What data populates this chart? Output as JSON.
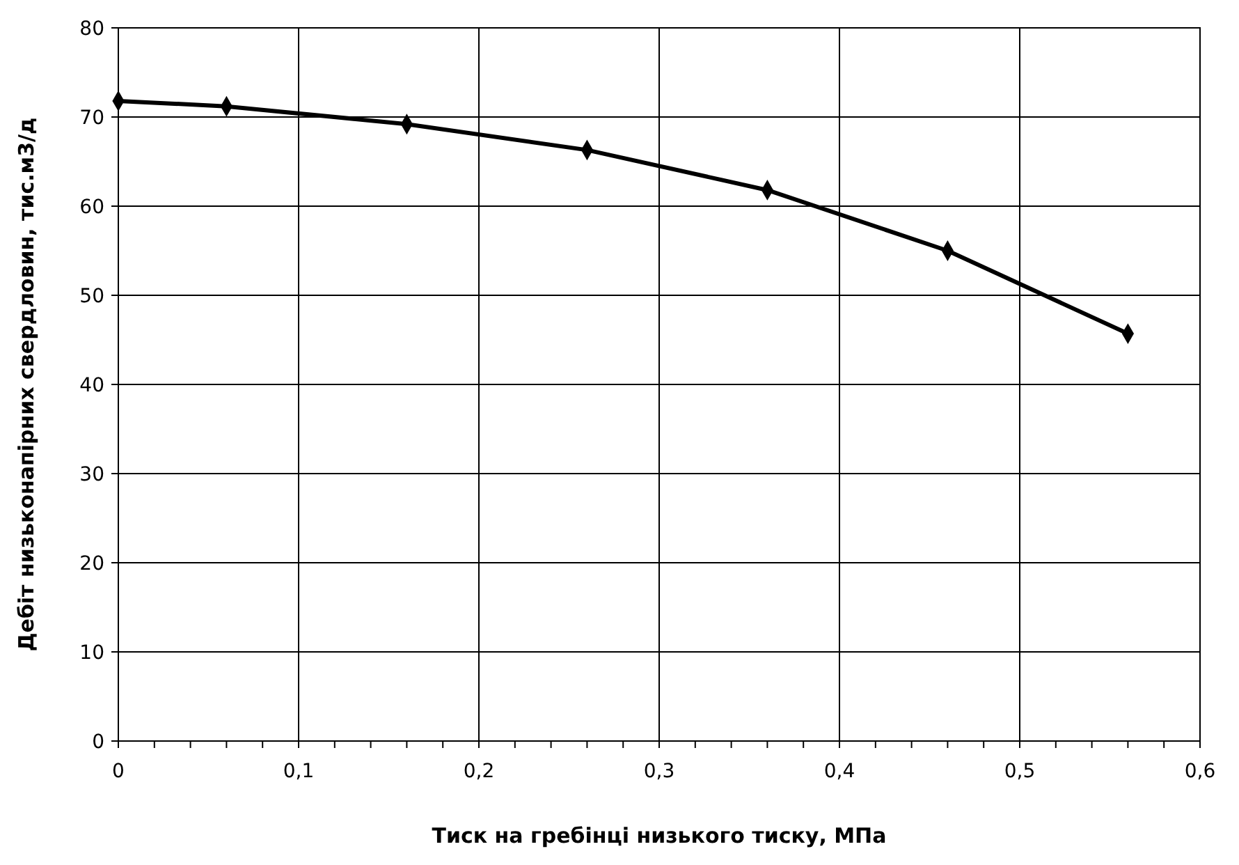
{
  "chart_data": {
    "type": "line",
    "xlabel": "Тиск на гребінці низького тиску, МПа",
    "ylabel": "Дебіт  низьконапірних свердловин, тис.м3/д",
    "x": [
      0,
      0.06,
      0.16,
      0.26,
      0.36,
      0.46,
      0.56
    ],
    "series": [
      {
        "color": "#000000",
        "values": [
          71.8,
          71.2,
          69.2,
          66.3,
          61.8,
          55.0,
          45.7
        ]
      }
    ],
    "xlim": [
      0,
      0.6
    ],
    "xticks": [
      0,
      {
        "value": 0.02,
        "label": null
      },
      {
        "value": 0.04,
        "label": null
      },
      {
        "value": 0.06,
        "label": null
      },
      {
        "value": 0.08,
        "label": null
      },
      {
        "value": 0.1,
        "label": "0,1"
      },
      {
        "value": 0.12,
        "label": null
      },
      {
        "value": 0.14,
        "label": null
      },
      {
        "value": 0.16,
        "label": null
      },
      {
        "value": 0.18,
        "label": null
      },
      {
        "value": 0.2,
        "label": "0,2"
      },
      {
        "value": 0.22,
        "label": null
      },
      {
        "value": 0.24,
        "label": null
      },
      {
        "value": 0.26,
        "label": null
      },
      {
        "value": 0.28,
        "label": null
      },
      {
        "value": 0.3,
        "label": "0,3"
      },
      {
        "value": 0.32,
        "label": null
      },
      {
        "value": 0.34,
        "label": null
      },
      {
        "value": 0.36,
        "label": null
      },
      {
        "value": 0.38,
        "label": null
      },
      {
        "value": 0.4,
        "label": "0,4"
      },
      {
        "value": 0.42,
        "label": null
      },
      {
        "value": 0.44,
        "label": null
      },
      {
        "value": 0.46,
        "label": null
      },
      {
        "value": 0.48,
        "label": null
      },
      {
        "value": 0.5,
        "label": "0,5"
      },
      {
        "value": 0.52,
        "label": null
      },
      {
        "value": 0.54,
        "label": null
      },
      {
        "value": 0.56,
        "label": null
      },
      {
        "value": 0.58,
        "label": null
      },
      {
        "value": 0.6,
        "label": "0,6"
      }
    ],
    "ylim": [
      0,
      80
    ],
    "yticks": [
      0,
      10,
      20,
      30,
      40,
      50,
      60,
      70,
      80
    ],
    "grid": true,
    "marker": "diamond",
    "line_style": "solid"
  }
}
